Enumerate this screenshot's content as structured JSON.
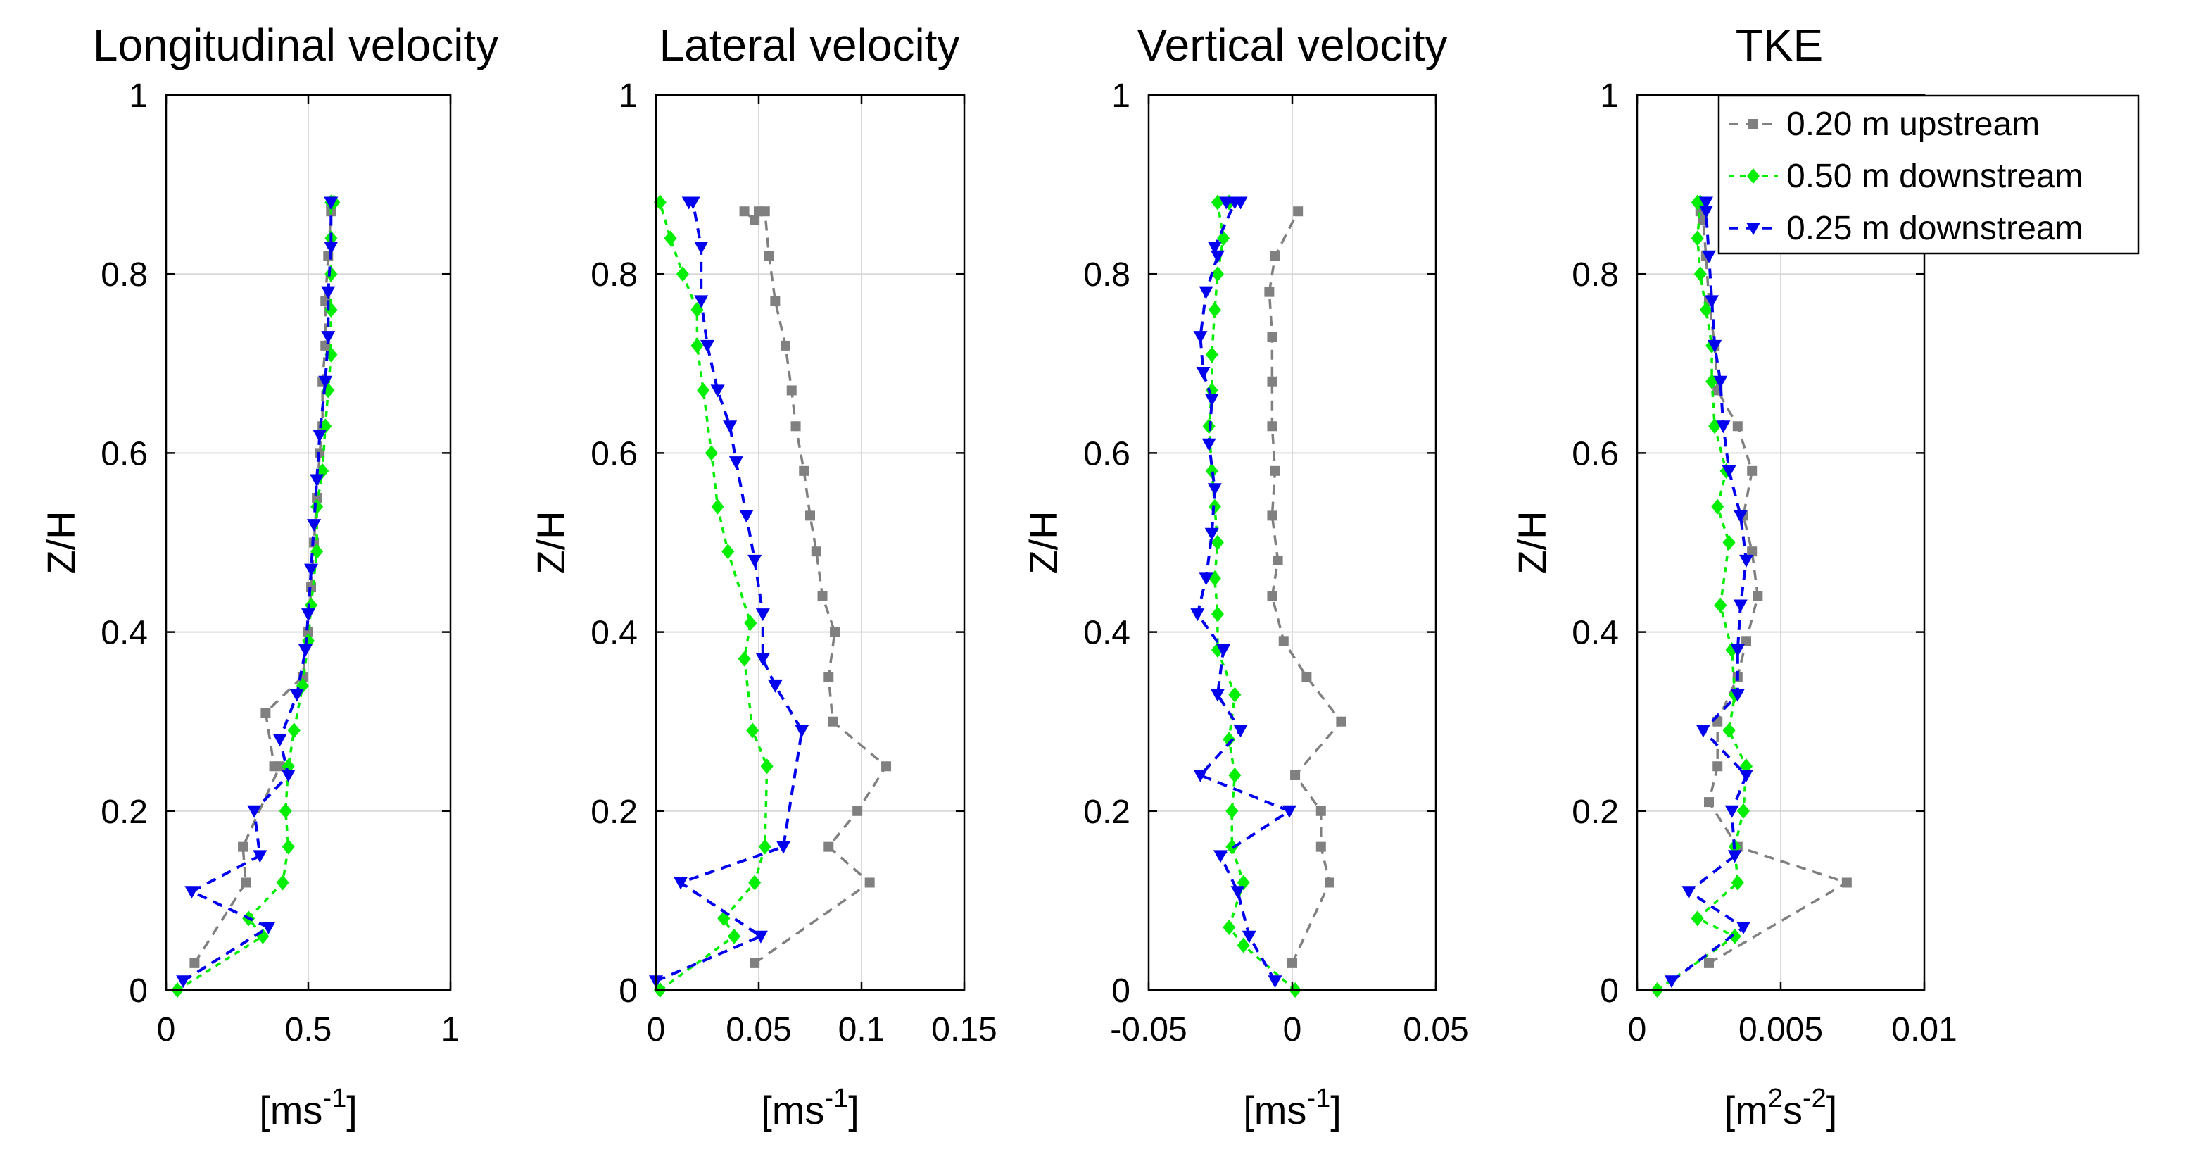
{
  "ylabel": "Z/H",
  "colors": {
    "upstream": "#808080",
    "down050": "#00ee00",
    "down025": "#0000ee",
    "grid": "#d9d9d9",
    "axis": "#000000"
  },
  "legend": {
    "entries": [
      {
        "series": "upstream",
        "label": "0.20 m upstream"
      },
      {
        "series": "down050",
        "label": "0.50 m downstream"
      },
      {
        "series": "down025",
        "label": "0.25 m downstream"
      }
    ]
  },
  "chart_data": [
    {
      "type": "line",
      "title": "Longitudinal velocity",
      "xlabel_base": "[ms",
      "xlabel_sup": "-1",
      "xlabel_end": "]",
      "ylabel": "Z/H",
      "xlim": [
        0,
        1
      ],
      "ylim": [
        0,
        1
      ],
      "xticks": [
        0,
        0.5,
        1
      ],
      "xtick_labels": [
        "0",
        "0.5",
        "1"
      ],
      "yticks": [
        0,
        0.2,
        0.4,
        0.6,
        0.8,
        1
      ],
      "ytick_labels": [
        "0",
        "0.2",
        "0.4",
        "0.6",
        "0.8",
        "1"
      ],
      "grid": true,
      "series": [
        {
          "key": "upstream",
          "name": "0.20 m upstream",
          "x": [
            0.1,
            0.28,
            0.27,
            0.4,
            0.38,
            0.35,
            0.48,
            0.5,
            0.51,
            0.52,
            0.53,
            0.54,
            0.55,
            0.55,
            0.56,
            0.56,
            0.57,
            0.58,
            0.58
          ],
          "y": [
            0.03,
            0.12,
            0.16,
            0.25,
            0.25,
            0.31,
            0.35,
            0.4,
            0.45,
            0.5,
            0.55,
            0.6,
            0.63,
            0.68,
            0.72,
            0.77,
            0.82,
            0.87,
            0.88
          ]
        },
        {
          "key": "down050",
          "name": "0.50 m downstream",
          "x": [
            0.04,
            0.34,
            0.29,
            0.41,
            0.43,
            0.42,
            0.43,
            0.45,
            0.48,
            0.5,
            0.51,
            0.53,
            0.53,
            0.55,
            0.56,
            0.57,
            0.58,
            0.58,
            0.58,
            0.58,
            0.58,
            0.59,
            0.58
          ],
          "y": [
            0.0,
            0.06,
            0.08,
            0.12,
            0.16,
            0.2,
            0.25,
            0.29,
            0.34,
            0.39,
            0.43,
            0.49,
            0.54,
            0.58,
            0.63,
            0.67,
            0.71,
            0.76,
            0.8,
            0.84,
            0.88,
            0.88,
            0.88
          ]
        },
        {
          "key": "down025",
          "name": "0.25 m downstream",
          "x": [
            0.06,
            0.36,
            0.09,
            0.33,
            0.31,
            0.43,
            0.4,
            0.46,
            0.49,
            0.5,
            0.51,
            0.52,
            0.53,
            0.54,
            0.56,
            0.57,
            0.57,
            0.58,
            0.58
          ],
          "y": [
            0.01,
            0.07,
            0.11,
            0.15,
            0.2,
            0.24,
            0.28,
            0.33,
            0.38,
            0.42,
            0.47,
            0.52,
            0.57,
            0.62,
            0.68,
            0.73,
            0.78,
            0.83,
            0.88
          ]
        }
      ]
    },
    {
      "type": "line",
      "title": "Lateral velocity",
      "xlabel_base": "[ms",
      "xlabel_sup": "-1",
      "xlabel_end": "]",
      "ylabel": "Z/H",
      "xlim": [
        0,
        0.15
      ],
      "ylim": [
        0,
        1
      ],
      "xticks": [
        0,
        0.05,
        0.1,
        0.15
      ],
      "xtick_labels": [
        "0",
        "0.05",
        "0.1",
        "0.15"
      ],
      "yticks": [
        0,
        0.2,
        0.4,
        0.6,
        0.8,
        1
      ],
      "ytick_labels": [
        "0",
        "0.2",
        "0.4",
        "0.6",
        "0.8",
        "1"
      ],
      "grid": true,
      "series": [
        {
          "key": "upstream",
          "name": "0.20 m upstream",
          "x": [
            0.048,
            0.104,
            0.084,
            0.098,
            0.112,
            0.086,
            0.084,
            0.087,
            0.081,
            0.078,
            0.075,
            0.072,
            0.068,
            0.066,
            0.063,
            0.058,
            0.055,
            0.053,
            0.05,
            0.048,
            0.043
          ],
          "y": [
            0.03,
            0.12,
            0.16,
            0.2,
            0.25,
            0.3,
            0.35,
            0.4,
            0.44,
            0.49,
            0.53,
            0.58,
            0.63,
            0.67,
            0.72,
            0.77,
            0.82,
            0.87,
            0.87,
            0.86,
            0.87
          ]
        },
        {
          "key": "down050",
          "name": "0.50 m downstream",
          "x": [
            0.002,
            0.038,
            0.033,
            0.048,
            0.053,
            0.054,
            0.047,
            0.043,
            0.046,
            0.035,
            0.03,
            0.027,
            0.023,
            0.02,
            0.02,
            0.013,
            0.007,
            0.002
          ],
          "y": [
            0.0,
            0.06,
            0.08,
            0.12,
            0.16,
            0.25,
            0.29,
            0.37,
            0.41,
            0.49,
            0.54,
            0.6,
            0.67,
            0.72,
            0.76,
            0.8,
            0.84,
            0.88
          ]
        },
        {
          "key": "down025",
          "name": "0.25 m downstream",
          "x": [
            0.0,
            0.051,
            0.012,
            0.062,
            0.071,
            0.058,
            0.052,
            0.052,
            0.048,
            0.044,
            0.039,
            0.036,
            0.03,
            0.025,
            0.022,
            0.022,
            0.018,
            0.016
          ],
          "y": [
            0.01,
            0.06,
            0.12,
            0.16,
            0.29,
            0.34,
            0.37,
            0.42,
            0.48,
            0.53,
            0.59,
            0.63,
            0.67,
            0.72,
            0.77,
            0.83,
            0.88,
            0.88
          ]
        }
      ]
    },
    {
      "type": "line",
      "title": "Vertical velocity",
      "xlabel_base": "[ms",
      "xlabel_sup": "-1",
      "xlabel_end": "]",
      "ylabel": "Z/H",
      "xlim": [
        -0.05,
        0.05
      ],
      "ylim": [
        0,
        1
      ],
      "xticks": [
        -0.05,
        0,
        0.05
      ],
      "xtick_labels": [
        "-0.05",
        "0",
        "0.05"
      ],
      "yticks": [
        0,
        0.2,
        0.4,
        0.6,
        0.8,
        1
      ],
      "ytick_labels": [
        "0",
        "0.2",
        "0.4",
        "0.6",
        "0.8",
        "1"
      ],
      "grid": true,
      "series": [
        {
          "key": "upstream",
          "name": "0.20 m upstream",
          "x": [
            0.0,
            0.013,
            0.01,
            0.01,
            0.001,
            0.017,
            0.005,
            -0.003,
            -0.007,
            -0.005,
            -0.007,
            -0.006,
            -0.007,
            -0.007,
            -0.007,
            -0.008,
            -0.006,
            0.002
          ],
          "y": [
            0.03,
            0.12,
            0.16,
            0.2,
            0.24,
            0.3,
            0.35,
            0.39,
            0.44,
            0.48,
            0.53,
            0.58,
            0.63,
            0.68,
            0.73,
            0.78,
            0.82,
            0.87
          ]
        },
        {
          "key": "down050",
          "name": "0.50 m downstream",
          "x": [
            0.001,
            -0.017,
            -0.022,
            -0.017,
            -0.021,
            -0.021,
            -0.02,
            -0.022,
            -0.02,
            -0.026,
            -0.026,
            -0.027,
            -0.026,
            -0.027,
            -0.028,
            -0.029,
            -0.028,
            -0.028,
            -0.027,
            -0.026,
            -0.024,
            -0.026,
            -0.022,
            -0.022
          ],
          "y": [
            0.0,
            0.05,
            0.07,
            0.12,
            0.16,
            0.2,
            0.24,
            0.28,
            0.33,
            0.38,
            0.42,
            0.46,
            0.5,
            0.54,
            0.58,
            0.63,
            0.67,
            0.71,
            0.76,
            0.8,
            0.84,
            0.88,
            0.88,
            0.88
          ]
        },
        {
          "key": "down025",
          "name": "0.25 m downstream",
          "x": [
            -0.006,
            -0.015,
            -0.019,
            -0.025,
            -0.001,
            -0.032,
            -0.018,
            -0.026,
            -0.024,
            -0.033,
            -0.03,
            -0.028,
            -0.027,
            -0.029,
            -0.028,
            -0.031,
            -0.032,
            -0.03,
            -0.026,
            -0.027,
            -0.02,
            -0.023,
            -0.018
          ],
          "y": [
            0.01,
            0.06,
            0.11,
            0.15,
            0.2,
            0.24,
            0.29,
            0.33,
            0.38,
            0.42,
            0.46,
            0.51,
            0.56,
            0.61,
            0.66,
            0.69,
            0.73,
            0.78,
            0.82,
            0.83,
            0.88,
            0.88,
            0.88
          ]
        }
      ]
    },
    {
      "type": "line",
      "title": "TKE",
      "xlabel_base": "[m",
      "xlabel_sup": "2",
      "xlabel_mid": "s",
      "xlabel_sup2": "-2",
      "xlabel_end": "]",
      "ylabel": "Z/H",
      "xlim": [
        0,
        0.01
      ],
      "ylim": [
        0,
        1
      ],
      "xticks": [
        0,
        0.005,
        0.01
      ],
      "xtick_labels": [
        "0",
        "0.005",
        "0.01"
      ],
      "yticks": [
        0,
        0.2,
        0.4,
        0.6,
        0.8,
        1
      ],
      "ytick_labels": [
        "0",
        "0.2",
        "0.4",
        "0.6",
        "0.8",
        "1"
      ],
      "grid": true,
      "series": [
        {
          "key": "upstream",
          "name": "0.20 m upstream",
          "x": [
            0.0025,
            0.0073,
            0.0035,
            0.0025,
            0.0028,
            0.0028,
            0.0035,
            0.0038,
            0.0042,
            0.004,
            0.0037,
            0.004,
            0.0035,
            0.0028,
            0.0027,
            0.0025,
            0.0024,
            0.0023,
            0.0022
          ],
          "y": [
            0.03,
            0.12,
            0.16,
            0.21,
            0.25,
            0.3,
            0.35,
            0.39,
            0.44,
            0.49,
            0.53,
            0.58,
            0.63,
            0.67,
            0.72,
            0.77,
            0.82,
            0.86,
            0.87
          ]
        },
        {
          "key": "down050",
          "name": "0.50 m downstream",
          "x": [
            0.0007,
            0.0034,
            0.0021,
            0.0035,
            0.0034,
            0.0037,
            0.0038,
            0.0032,
            0.0034,
            0.0033,
            0.0029,
            0.0032,
            0.0028,
            0.0031,
            0.0027,
            0.0026,
            0.0026,
            0.0024,
            0.0022,
            0.0021,
            0.0022,
            0.0021
          ],
          "y": [
            0.0,
            0.06,
            0.08,
            0.12,
            0.16,
            0.2,
            0.25,
            0.29,
            0.33,
            0.38,
            0.43,
            0.5,
            0.54,
            0.58,
            0.63,
            0.68,
            0.72,
            0.76,
            0.8,
            0.84,
            0.88,
            0.88
          ]
        },
        {
          "key": "down025",
          "name": "0.25 m downstream",
          "x": [
            0.0012,
            0.0037,
            0.0018,
            0.0034,
            0.0033,
            0.0038,
            0.0023,
            0.0035,
            0.0035,
            0.0036,
            0.0038,
            0.0036,
            0.0032,
            0.003,
            0.0029,
            0.0027,
            0.0026,
            0.0025,
            0.0024,
            0.0024
          ],
          "y": [
            0.01,
            0.07,
            0.11,
            0.15,
            0.2,
            0.24,
            0.29,
            0.33,
            0.38,
            0.43,
            0.48,
            0.53,
            0.58,
            0.63,
            0.68,
            0.72,
            0.77,
            0.82,
            0.87,
            0.88
          ]
        }
      ]
    }
  ]
}
